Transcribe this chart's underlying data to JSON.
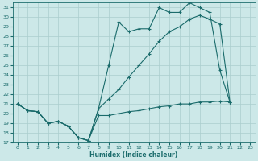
{
  "xlabel": "Humidex (Indice chaleur)",
  "bg_color": "#cce8e8",
  "line_color": "#1a6b6b",
  "grid_color": "#aacece",
  "xlim": [
    -0.5,
    23.5
  ],
  "ylim": [
    17,
    31.5
  ],
  "yticks": [
    17,
    18,
    19,
    20,
    21,
    22,
    23,
    24,
    25,
    26,
    27,
    28,
    29,
    30,
    31
  ],
  "xticks": [
    0,
    1,
    2,
    3,
    4,
    5,
    6,
    7,
    8,
    9,
    10,
    11,
    12,
    13,
    14,
    15,
    16,
    17,
    18,
    19,
    20,
    21,
    22,
    23
  ],
  "line1_x": [
    0,
    1,
    2,
    3,
    4,
    5,
    6,
    7,
    8,
    9,
    10,
    11,
    12,
    13,
    14,
    15,
    16,
    17,
    18,
    19,
    20,
    21
  ],
  "line1_y": [
    21.0,
    20.3,
    20.2,
    19.0,
    19.2,
    18.7,
    17.5,
    17.2,
    20.5,
    25.0,
    29.5,
    28.5,
    28.8,
    28.8,
    31.0,
    30.5,
    30.5,
    31.5,
    31.0,
    30.5,
    24.5,
    21.2
  ],
  "line2_x": [
    0,
    1,
    2,
    3,
    4,
    5,
    6,
    7,
    8,
    9,
    10,
    11,
    12,
    13,
    14,
    15,
    16,
    17,
    18,
    19,
    20,
    21
  ],
  "line2_y": [
    21.0,
    20.3,
    20.2,
    19.0,
    19.2,
    18.7,
    17.5,
    17.2,
    20.5,
    21.5,
    22.5,
    23.8,
    25.0,
    26.2,
    27.5,
    28.5,
    29.0,
    29.8,
    30.2,
    29.8,
    29.3,
    21.2
  ],
  "line3_x": [
    0,
    1,
    2,
    3,
    4,
    5,
    6,
    7,
    8,
    9,
    10,
    11,
    12,
    13,
    14,
    15,
    16,
    17,
    18,
    19,
    20,
    21
  ],
  "line3_y": [
    21.0,
    20.3,
    20.2,
    19.0,
    19.2,
    18.7,
    17.5,
    17.2,
    19.8,
    19.8,
    20.0,
    20.2,
    20.3,
    20.5,
    20.7,
    20.8,
    21.0,
    21.0,
    21.2,
    21.2,
    21.3,
    21.2
  ]
}
